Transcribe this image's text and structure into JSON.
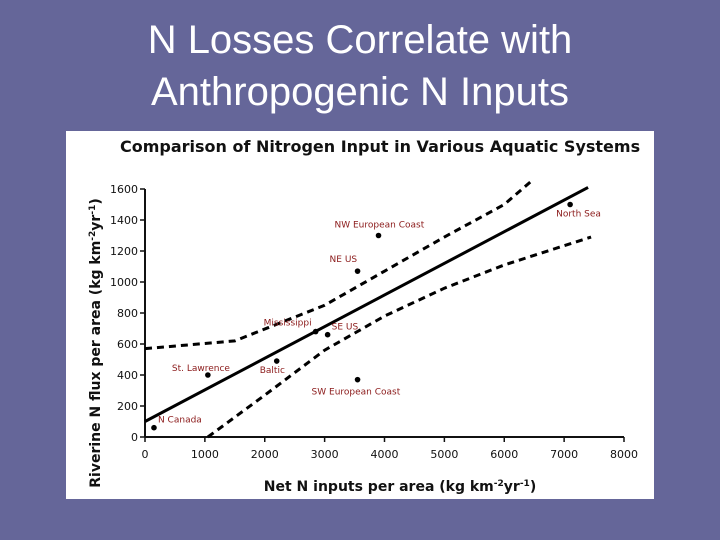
{
  "slide": {
    "title_line1": "N Losses Correlate with",
    "title_line2": "Anthropogenic N Inputs",
    "background_color": "#656699"
  },
  "chart_data": {
    "type": "scatter",
    "title": "Comparison of Nitrogen Input in Various Aquatic Systems",
    "xlabel_main": "Net N inputs per area (kg km",
    "xlabel_sup1": "-2",
    "xlabel_mid": "yr",
    "xlabel_sup2": "-1",
    "xlabel_end": ")",
    "ylabel_main": "Riverine N flux per area (kg km",
    "ylabel_sup1": "-2",
    "ylabel_mid": "yr",
    "ylabel_sup2": "-1",
    "ylabel_end": ")",
    "xlim": [
      0,
      8000
    ],
    "ylim": [
      0,
      1600
    ],
    "xticks": [
      0,
      1000,
      2000,
      3000,
      4000,
      5000,
      6000,
      7000,
      8000
    ],
    "yticks": [
      0,
      200,
      400,
      600,
      800,
      1000,
      1200,
      1400,
      1600
    ],
    "grid": false,
    "points": [
      {
        "label": "N Canada",
        "x": 150,
        "y": 60
      },
      {
        "label": "St. Lawrence",
        "x": 1050,
        "y": 400
      },
      {
        "label": "Baltic",
        "x": 2200,
        "y": 490
      },
      {
        "label": "Mississippi",
        "x": 2850,
        "y": 680
      },
      {
        "label": "SE US",
        "x": 3050,
        "y": 660
      },
      {
        "label": "SW European Coast",
        "x": 3550,
        "y": 370
      },
      {
        "label": "NE US",
        "x": 3550,
        "y": 1070
      },
      {
        "label": "NW European Coast",
        "x": 3900,
        "y": 1300
      },
      {
        "label": "North Sea",
        "x": 7100,
        "y": 1500
      }
    ],
    "regression_line": {
      "x": [
        0,
        7400
      ],
      "y": [
        100,
        1610
      ]
    },
    "confidence_upper": {
      "x": [
        0,
        1500,
        3000,
        4000,
        5000,
        6000,
        6450
      ],
      "y": [
        570,
        620,
        850,
        1070,
        1290,
        1500,
        1650
      ]
    },
    "confidence_lower": {
      "x": [
        1050,
        2000,
        3000,
        4000,
        5000,
        6000,
        7450
      ],
      "y": [
        0,
        270,
        560,
        780,
        960,
        1110,
        1290
      ]
    }
  }
}
